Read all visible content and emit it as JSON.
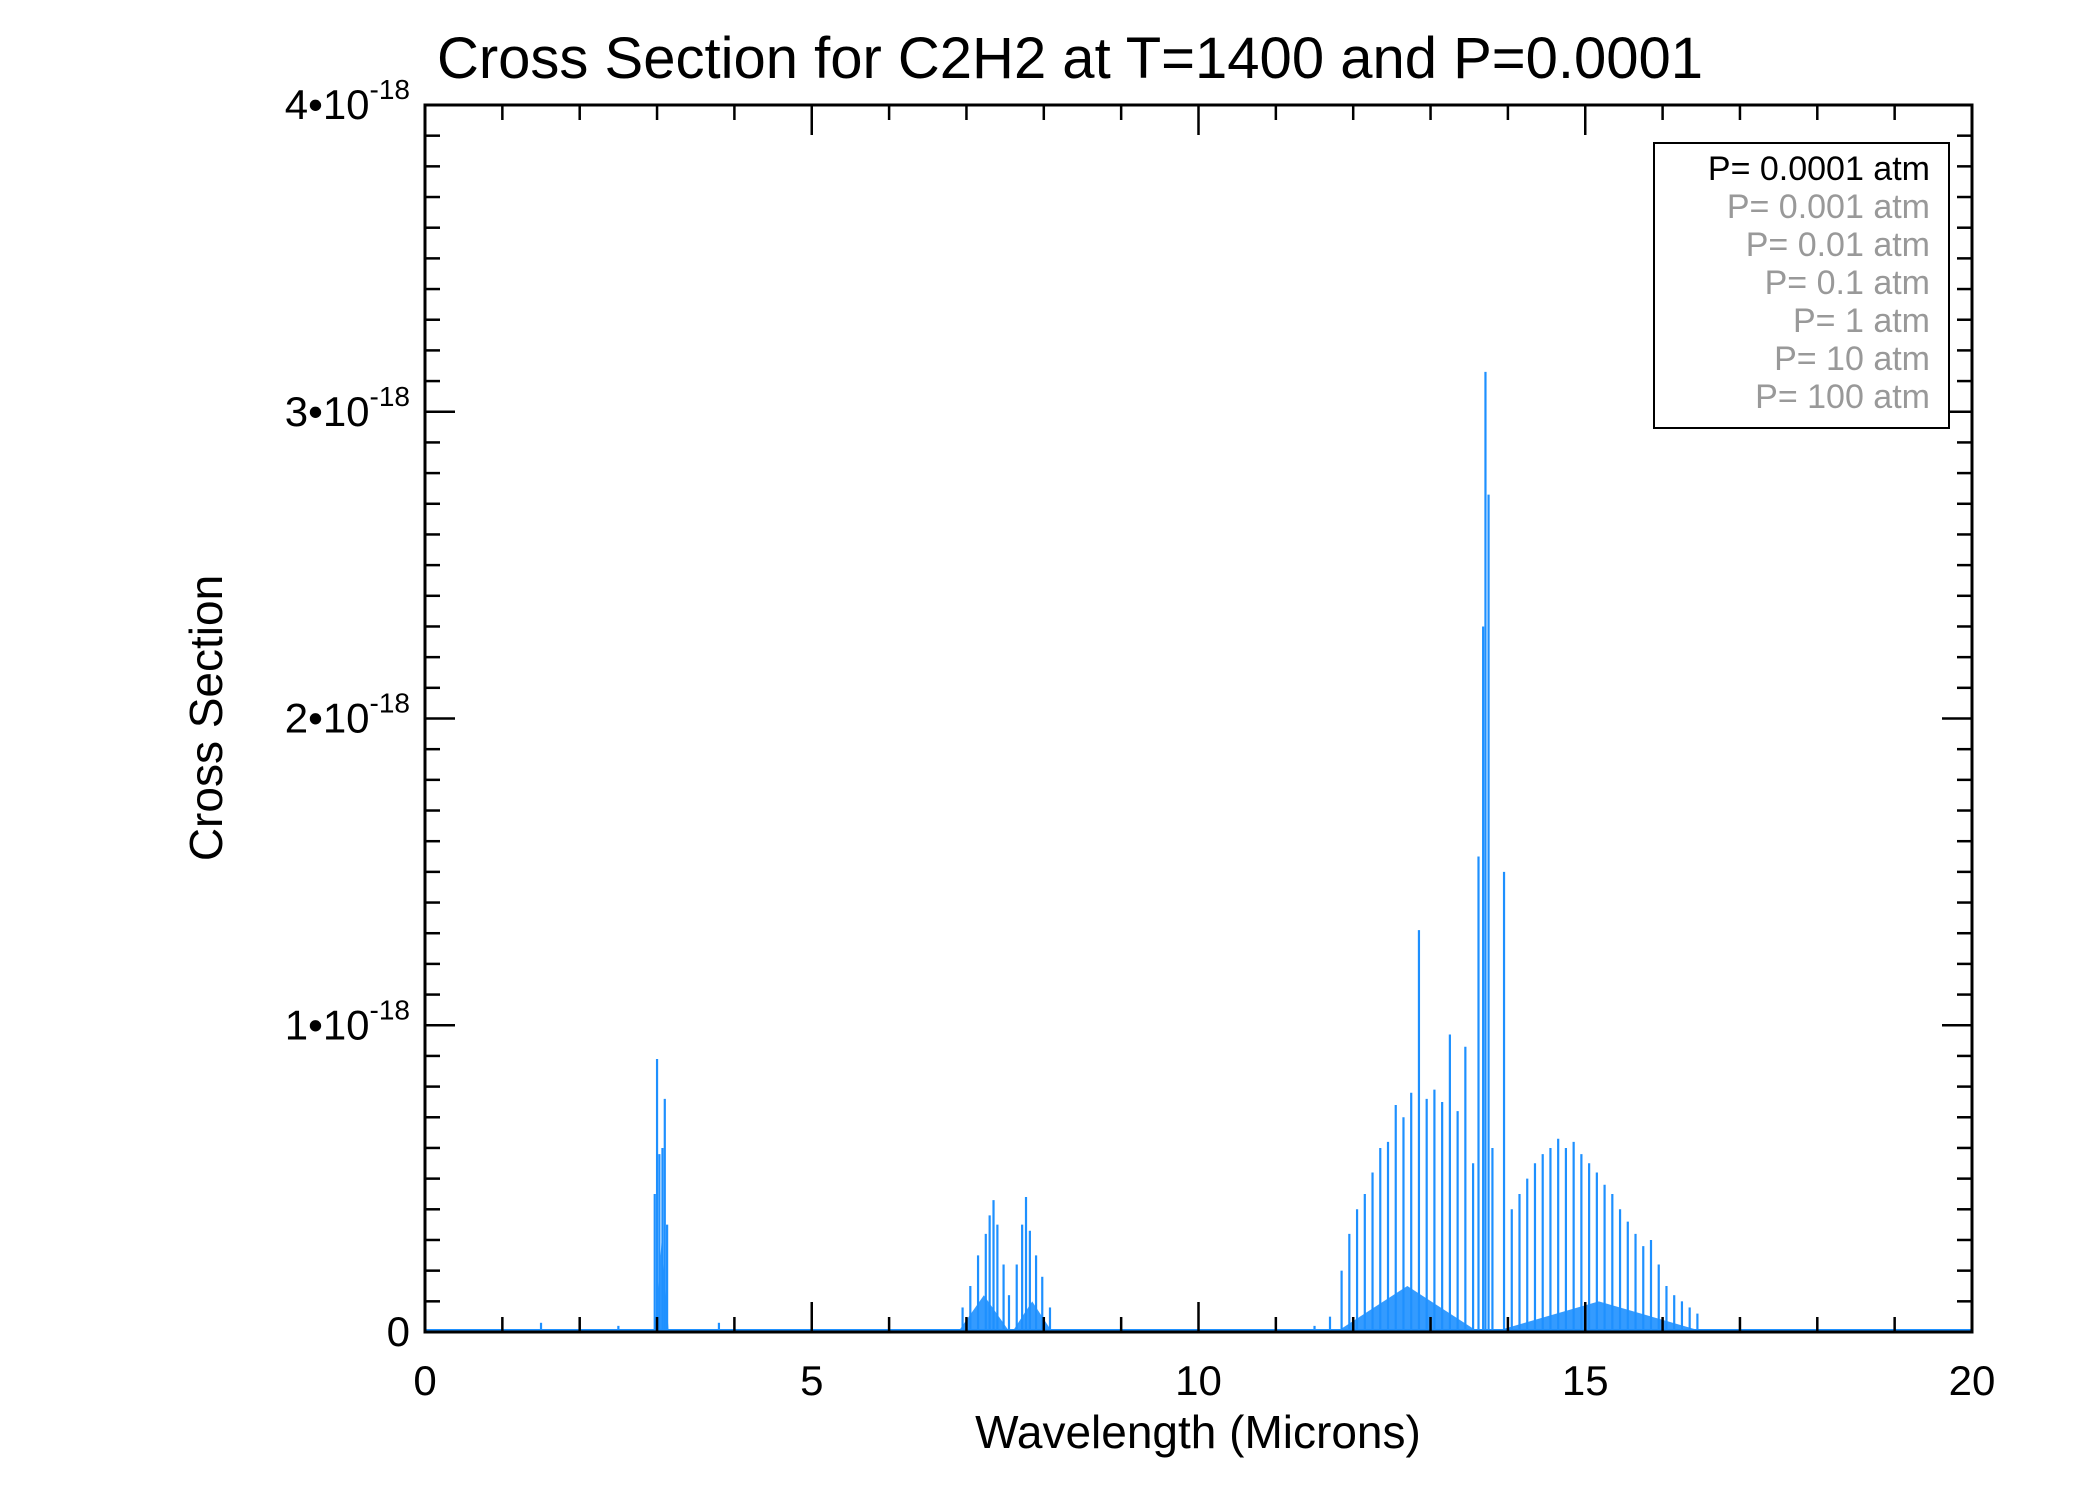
{
  "chart_data": {
    "type": "line",
    "title": "Cross Section for C2H2 at T=1400 and P=0.0001",
    "xlabel": "Wavelength (Microns)",
    "ylabel": "Cross Section",
    "xlim": [
      0,
      20
    ],
    "ylim": [
      0,
      4e-18
    ],
    "x_ticks": [
      {
        "value": 0,
        "label": "0"
      },
      {
        "value": 5,
        "label": "5"
      },
      {
        "value": 10,
        "label": "10"
      },
      {
        "value": 15,
        "label": "15"
      },
      {
        "value": 20,
        "label": "20"
      }
    ],
    "y_ticks": [
      {
        "value": 0,
        "mantissa": "0",
        "exponent": ""
      },
      {
        "value": 1e-18,
        "mantissa": "1•10",
        "exponent": "-18"
      },
      {
        "value": 2e-18,
        "mantissa": "2•10",
        "exponent": "-18"
      },
      {
        "value": 3e-18,
        "mantissa": "3•10",
        "exponent": "-18"
      },
      {
        "value": 4e-18,
        "mantissa": "4•10",
        "exponent": "-18"
      }
    ],
    "grid": false,
    "legend_position": "top-right",
    "legend": [
      {
        "label": "P= 0.0001 atm",
        "color": "#000000"
      },
      {
        "label": "P= 0.001 atm",
        "color": "#999999"
      },
      {
        "label": "P= 0.01 atm",
        "color": "#999999"
      },
      {
        "label": "P= 0.1 atm",
        "color": "#999999"
      },
      {
        "label": "P= 1 atm",
        "color": "#999999"
      },
      {
        "label": "P= 10 atm",
        "color": "#999999"
      },
      {
        "label": "P= 100 atm",
        "color": "#999999"
      }
    ],
    "series": [
      {
        "name": "P= 0.0001 atm",
        "color": "#1E90FF",
        "peaks": [
          {
            "x": 1.5,
            "y": 3e-20
          },
          {
            "x": 2.5,
            "y": 2e-20
          },
          {
            "x": 2.97,
            "y": 4.5e-19
          },
          {
            "x": 3.0,
            "y": 8.9e-19
          },
          {
            "x": 3.03,
            "y": 5.8e-19
          },
          {
            "x": 3.07,
            "y": 6e-19
          },
          {
            "x": 3.1,
            "y": 7.6e-19
          },
          {
            "x": 3.13,
            "y": 3.5e-19
          },
          {
            "x": 3.8,
            "y": 3e-20
          },
          {
            "x": 6.95,
            "y": 8e-20
          },
          {
            "x": 7.05,
            "y": 1.5e-19
          },
          {
            "x": 7.15,
            "y": 2.5e-19
          },
          {
            "x": 7.25,
            "y": 3.2e-19
          },
          {
            "x": 7.3,
            "y": 3.8e-19
          },
          {
            "x": 7.35,
            "y": 4.3e-19
          },
          {
            "x": 7.4,
            "y": 3.5e-19
          },
          {
            "x": 7.48,
            "y": 2.2e-19
          },
          {
            "x": 7.55,
            "y": 1.2e-19
          },
          {
            "x": 7.65,
            "y": 2.2e-19
          },
          {
            "x": 7.72,
            "y": 3.5e-19
          },
          {
            "x": 7.77,
            "y": 4.4e-19
          },
          {
            "x": 7.82,
            "y": 3.3e-19
          },
          {
            "x": 7.9,
            "y": 2.5e-19
          },
          {
            "x": 7.98,
            "y": 1.8e-19
          },
          {
            "x": 8.08,
            "y": 8e-20
          },
          {
            "x": 11.5,
            "y": 2e-20
          },
          {
            "x": 11.7,
            "y": 5e-20
          },
          {
            "x": 11.85,
            "y": 2e-19
          },
          {
            "x": 11.95,
            "y": 3.2e-19
          },
          {
            "x": 12.05,
            "y": 4e-19
          },
          {
            "x": 12.15,
            "y": 4.5e-19
          },
          {
            "x": 12.25,
            "y": 5.2e-19
          },
          {
            "x": 12.35,
            "y": 6e-19
          },
          {
            "x": 12.45,
            "y": 6.2e-19
          },
          {
            "x": 12.55,
            "y": 7.4e-19
          },
          {
            "x": 12.65,
            "y": 7e-19
          },
          {
            "x": 12.75,
            "y": 7.8e-19
          },
          {
            "x": 12.85,
            "y": 1.31e-18
          },
          {
            "x": 12.95,
            "y": 7.6e-19
          },
          {
            "x": 13.05,
            "y": 7.9e-19
          },
          {
            "x": 13.15,
            "y": 7.5e-19
          },
          {
            "x": 13.25,
            "y": 9.7e-19
          },
          {
            "x": 13.35,
            "y": 7.2e-19
          },
          {
            "x": 13.45,
            "y": 9.3e-19
          },
          {
            "x": 13.55,
            "y": 5.5e-19
          },
          {
            "x": 13.62,
            "y": 1.55e-18
          },
          {
            "x": 13.68,
            "y": 2.3e-18
          },
          {
            "x": 13.71,
            "y": 3.13e-18
          },
          {
            "x": 13.75,
            "y": 2.73e-18
          },
          {
            "x": 13.8,
            "y": 6e-19
          },
          {
            "x": 13.95,
            "y": 1.5e-18
          },
          {
            "x": 14.05,
            "y": 4e-19
          },
          {
            "x": 14.15,
            "y": 4.5e-19
          },
          {
            "x": 14.25,
            "y": 5e-19
          },
          {
            "x": 14.35,
            "y": 5.5e-19
          },
          {
            "x": 14.45,
            "y": 5.8e-19
          },
          {
            "x": 14.55,
            "y": 6e-19
          },
          {
            "x": 14.65,
            "y": 6.3e-19
          },
          {
            "x": 14.75,
            "y": 6e-19
          },
          {
            "x": 14.85,
            "y": 6.2e-19
          },
          {
            "x": 14.95,
            "y": 5.8e-19
          },
          {
            "x": 15.05,
            "y": 5.5e-19
          },
          {
            "x": 15.15,
            "y": 5.2e-19
          },
          {
            "x": 15.25,
            "y": 4.8e-19
          },
          {
            "x": 15.35,
            "y": 4.5e-19
          },
          {
            "x": 15.45,
            "y": 4e-19
          },
          {
            "x": 15.55,
            "y": 3.6e-19
          },
          {
            "x": 15.65,
            "y": 3.2e-19
          },
          {
            "x": 15.75,
            "y": 2.8e-19
          },
          {
            "x": 15.85,
            "y": 3e-19
          },
          {
            "x": 15.95,
            "y": 2.2e-19
          },
          {
            "x": 16.05,
            "y": 1.5e-19
          },
          {
            "x": 16.15,
            "y": 1.2e-19
          },
          {
            "x": 16.25,
            "y": 1e-19
          },
          {
            "x": 16.35,
            "y": 8e-20
          },
          {
            "x": 16.45,
            "y": 6e-20
          }
        ]
      }
    ]
  }
}
